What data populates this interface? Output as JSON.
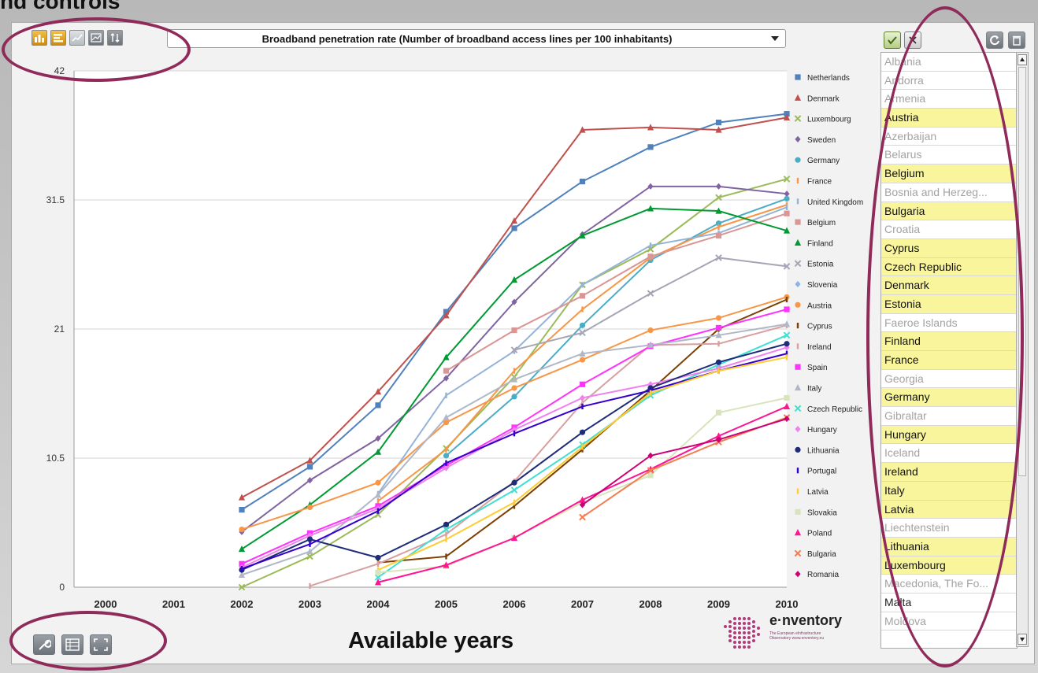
{
  "heading": "nd controls",
  "toolbar": {
    "buttons": [
      {
        "icon": "bar-chart-icon"
      },
      {
        "icon": "horizontal-bar-icon"
      },
      {
        "icon": "line-chart-icon"
      },
      {
        "icon": "area-chart-icon"
      },
      {
        "icon": "sort-icon"
      }
    ]
  },
  "indicator": {
    "selected": "Broadband penetration rate (Number of broadband access lines per 100 inhabitants)"
  },
  "footer": {
    "years_caption": "Available years",
    "logo_word": "e·nventory",
    "logo_sub": "The European eInfrastructure Observatory www.enventory.eu"
  },
  "side": {
    "countries": [
      {
        "name": "Albania",
        "state": "unsel"
      },
      {
        "name": "Andorra",
        "state": "unsel"
      },
      {
        "name": "Armenia",
        "state": "unsel"
      },
      {
        "name": "Austria",
        "state": "sel"
      },
      {
        "name": "Azerbaijan",
        "state": "unsel"
      },
      {
        "name": "Belarus",
        "state": "unsel"
      },
      {
        "name": "Belgium",
        "state": "sel"
      },
      {
        "name": "Bosnia and Herzeg...",
        "state": "unsel"
      },
      {
        "name": "Bulgaria",
        "state": "sel"
      },
      {
        "name": "Croatia",
        "state": "unsel"
      },
      {
        "name": "Cyprus",
        "state": "sel"
      },
      {
        "name": "Czech Republic",
        "state": "sel"
      },
      {
        "name": "Denmark",
        "state": "sel"
      },
      {
        "name": "Estonia",
        "state": "sel"
      },
      {
        "name": "Faeroe Islands",
        "state": "unsel"
      },
      {
        "name": "Finland",
        "state": "sel"
      },
      {
        "name": "France",
        "state": "sel"
      },
      {
        "name": "Georgia",
        "state": "unsel"
      },
      {
        "name": "Germany",
        "state": "sel"
      },
      {
        "name": "Gibraltar",
        "state": "unsel"
      },
      {
        "name": "Hungary",
        "state": "sel"
      },
      {
        "name": "Iceland",
        "state": "unsel"
      },
      {
        "name": "Ireland",
        "state": "sel"
      },
      {
        "name": "Italy",
        "state": "sel"
      },
      {
        "name": "Latvia",
        "state": "sel"
      },
      {
        "name": "Liechtenstein",
        "state": "unsel"
      },
      {
        "name": "Lithuania",
        "state": "sel"
      },
      {
        "name": "Luxembourg",
        "state": "sel"
      },
      {
        "name": "Macedonia, The Fo...",
        "state": "unsel"
      },
      {
        "name": "Malta",
        "state": "plain"
      },
      {
        "name": "Moldova",
        "state": "unsel"
      }
    ]
  },
  "chart_data": {
    "type": "line",
    "title": "",
    "xlabel": "",
    "ylabel": "",
    "x": [
      "2000",
      "2001",
      "2002",
      "2003",
      "2004",
      "2005",
      "2006",
      "2007",
      "2008",
      "2009",
      "2010"
    ],
    "yticks": [
      "0",
      "10.5",
      "21",
      "31.5",
      "42"
    ],
    "ylim": [
      0,
      42
    ],
    "grid": true,
    "legend": "right",
    "series": [
      {
        "name": "Netherlands",
        "color": "#4f81bd",
        "marker": "square",
        "values": [
          null,
          null,
          6.3,
          9.8,
          14.8,
          22.4,
          29.2,
          33.0,
          35.8,
          37.8,
          38.5
        ]
      },
      {
        "name": "Denmark",
        "color": "#c0504d",
        "marker": "triangle",
        "values": [
          null,
          null,
          7.3,
          10.3,
          15.9,
          22.1,
          29.8,
          37.2,
          37.4,
          37.2,
          38.2
        ]
      },
      {
        "name": "Luxembourg",
        "color": "#9bbb59",
        "marker": "x",
        "values": [
          null,
          null,
          0.0,
          2.5,
          5.9,
          11.3,
          17.1,
          24.6,
          27.5,
          31.7,
          33.2
        ]
      },
      {
        "name": "Sweden",
        "color": "#8064a2",
        "marker": "diamond",
        "values": [
          null,
          null,
          4.5,
          8.7,
          12.1,
          17.0,
          23.2,
          28.7,
          32.6,
          32.6,
          32.0
        ]
      },
      {
        "name": "Germany",
        "color": "#4bacc6",
        "marker": "circle",
        "values": [
          null,
          null,
          null,
          null,
          null,
          10.7,
          15.5,
          21.3,
          26.6,
          29.6,
          31.6
        ]
      },
      {
        "name": "France",
        "color": "#f79646",
        "marker": "bar",
        "values": [
          null,
          null,
          null,
          null,
          7.0,
          11.2,
          17.6,
          22.6,
          26.8,
          29.3,
          31.1
        ]
      },
      {
        "name": "United Kingdom",
        "color": "#95b3d7",
        "marker": "bar",
        "values": [
          null,
          null,
          null,
          null,
          7.6,
          15.6,
          19.2,
          24.6,
          27.8,
          28.8,
          30.9
        ]
      },
      {
        "name": "Belgium",
        "color": "#da9694",
        "marker": "square",
        "values": [
          null,
          null,
          null,
          null,
          null,
          17.6,
          20.9,
          23.7,
          26.9,
          28.6,
          30.4
        ]
      },
      {
        "name": "Finland",
        "color": "#009933",
        "marker": "triangle",
        "values": [
          null,
          null,
          3.1,
          6.7,
          11.0,
          18.7,
          25.0,
          28.6,
          30.8,
          30.6,
          29.0
        ]
      },
      {
        "name": "Estonia",
        "color": "#a5a5b5",
        "marker": "x",
        "values": [
          null,
          null,
          null,
          null,
          null,
          null,
          19.3,
          20.7,
          23.9,
          26.8,
          26.1
        ]
      },
      {
        "name": "Slovenia",
        "color": "#8db4e2",
        "marker": "diamond",
        "values": [
          null,
          null,
          null,
          null,
          null,
          null,
          null,
          null,
          null,
          null,
          null
        ]
      },
      {
        "name": "Austria",
        "color": "#f79646",
        "marker": "circle",
        "values": [
          null,
          null,
          4.7,
          6.5,
          8.5,
          13.4,
          16.2,
          18.5,
          20.9,
          21.9,
          23.6
        ]
      },
      {
        "name": "Cyprus",
        "color": "#7b3f00",
        "marker": "bar",
        "values": [
          null,
          null,
          null,
          null,
          2.0,
          2.5,
          6.6,
          11.2,
          16.0,
          21.0,
          23.4
        ]
      },
      {
        "name": "Ireland",
        "color": "#d8a0a0",
        "marker": "bar",
        "values": [
          null,
          null,
          null,
          0.1,
          1.9,
          4.3,
          8.6,
          15.0,
          19.7,
          19.8,
          21.3
        ]
      },
      {
        "name": "Spain",
        "color": "#ff33ff",
        "marker": "square",
        "values": [
          null,
          null,
          1.9,
          4.4,
          6.6,
          9.9,
          13.0,
          16.5,
          19.6,
          21.1,
          22.6
        ]
      },
      {
        "name": "Italy",
        "color": "#b0b8c8",
        "marker": "triangle",
        "values": [
          null,
          null,
          1.0,
          2.9,
          7.5,
          13.8,
          16.9,
          19.0,
          19.7,
          20.5,
          21.4
        ]
      },
      {
        "name": "Czech Republic",
        "color": "#40e0d0",
        "marker": "x",
        "values": [
          null,
          null,
          null,
          null,
          0.8,
          4.7,
          7.9,
          11.6,
          15.6,
          18.1,
          20.5
        ]
      },
      {
        "name": "Hungary",
        "color": "#ee82ee",
        "marker": "diamond",
        "values": [
          null,
          null,
          1.6,
          4.2,
          6.4,
          9.7,
          12.8,
          15.4,
          16.5,
          17.8,
          19.5
        ]
      },
      {
        "name": "Lithuania",
        "color": "#1f2c7a",
        "marker": "circle",
        "values": [
          null,
          null,
          1.4,
          3.9,
          2.4,
          5.1,
          8.5,
          12.6,
          16.2,
          18.3,
          19.8
        ]
      },
      {
        "name": "Portugal",
        "color": "#3300cc",
        "marker": "bar",
        "values": [
          null,
          null,
          1.5,
          3.5,
          6.2,
          10.1,
          12.5,
          14.7,
          16.0,
          17.6,
          19.0
        ]
      },
      {
        "name": "Latvia",
        "color": "#ffcc33",
        "marker": "bar",
        "values": [
          null,
          null,
          null,
          null,
          1.4,
          3.9,
          6.9,
          11.4,
          15.8,
          17.6,
          18.7
        ]
      },
      {
        "name": "Slovakia",
        "color": "#d8e4bc",
        "marker": "square",
        "values": [
          null,
          null,
          null,
          null,
          1.2,
          1.7,
          4.0,
          6.9,
          9.1,
          14.2,
          15.4
        ]
      },
      {
        "name": "Poland",
        "color": "#ff1493",
        "marker": "triangle",
        "values": [
          null,
          null,
          null,
          null,
          0.4,
          1.8,
          4.0,
          7.1,
          9.6,
          12.3,
          14.7
        ]
      },
      {
        "name": "Bulgaria",
        "color": "#f47c50",
        "marker": "x",
        "values": [
          null,
          null,
          null,
          null,
          null,
          null,
          null,
          5.7,
          9.5,
          11.8,
          13.8
        ]
      },
      {
        "name": "Romania",
        "color": "#cc0077",
        "marker": "diamond",
        "values": [
          null,
          null,
          null,
          null,
          null,
          null,
          null,
          6.7,
          10.7,
          12.0,
          13.7
        ]
      }
    ]
  }
}
